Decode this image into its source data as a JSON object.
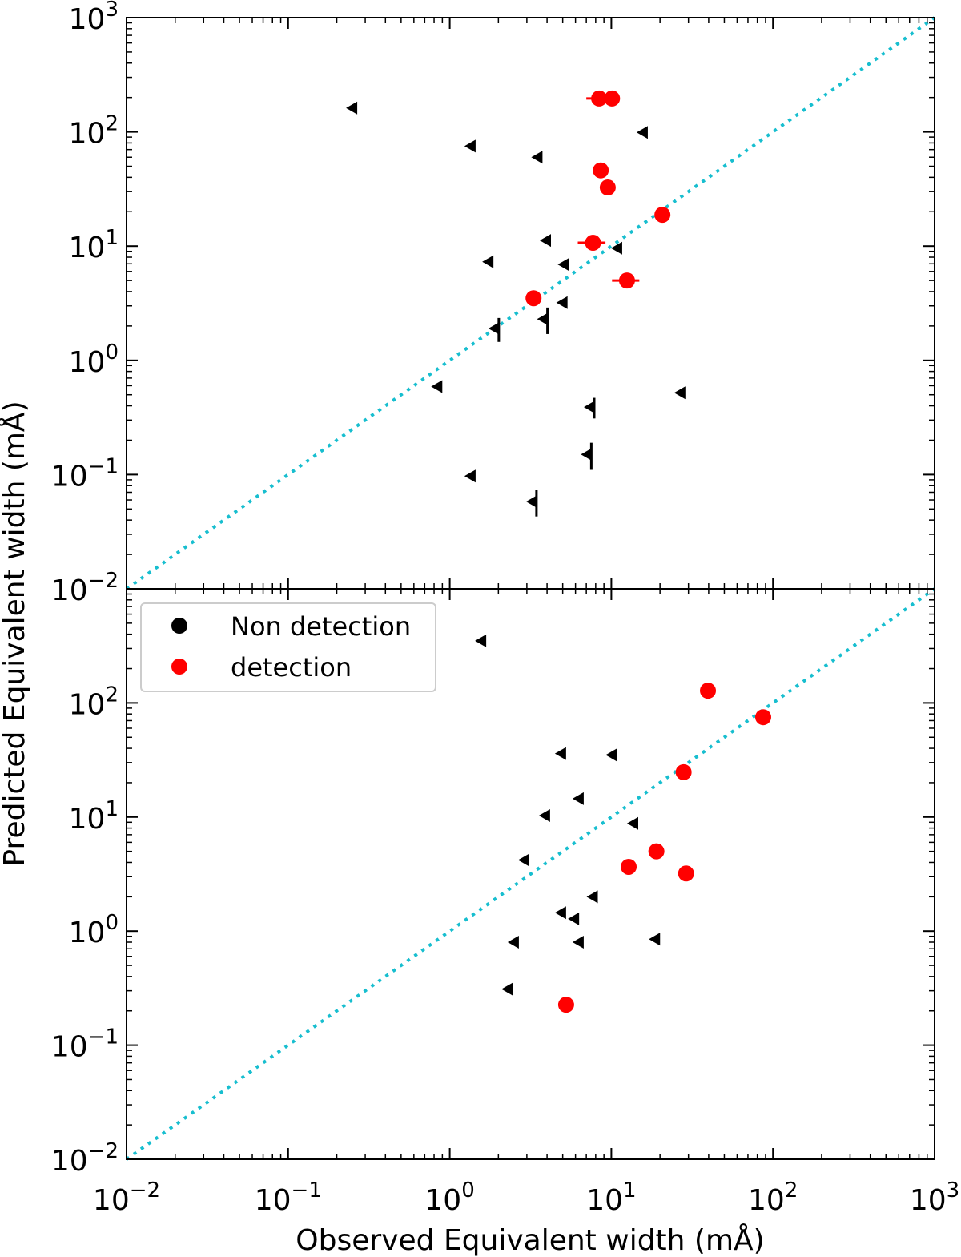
{
  "chart_data": [
    {
      "type": "scatter",
      "panel": "top",
      "xscale": "log",
      "yscale": "log",
      "xlim": [
        0.01,
        1000
      ],
      "ylim": [
        0.01,
        1000
      ],
      "reference_line": {
        "type": "y=x",
        "style": "dotted",
        "color": "#17becf"
      },
      "series": [
        {
          "name": "Non detection",
          "marker": "left-triangle",
          "color": "#000000",
          "points": [
            {
              "x": 0.25,
              "y": 162
            },
            {
              "x": 1.35,
              "y": 75
            },
            {
              "x": 3.5,
              "y": 60
            },
            {
              "x": 15.7,
              "y": 99
            },
            {
              "x": 3.95,
              "y": 11.2
            },
            {
              "x": 1.74,
              "y": 7.3
            },
            {
              "x": 5.1,
              "y": 6.9
            },
            {
              "x": 10.9,
              "y": 9.6
            },
            {
              "x": 5.0,
              "y": 3.2
            },
            {
              "x": 1.9,
              "y": 1.9,
              "yerr": 0.45
            },
            {
              "x": 3.8,
              "y": 2.3,
              "yerr": 0.6
            },
            {
              "x": 0.84,
              "y": 0.59
            },
            {
              "x": 26.8,
              "y": 0.52
            },
            {
              "x": 7.4,
              "y": 0.39,
              "yerr": 0.08
            },
            {
              "x": 7.1,
              "y": 0.15,
              "yerr": 0.04
            },
            {
              "x": 1.35,
              "y": 0.097
            },
            {
              "x": 3.25,
              "y": 0.058,
              "yerr": 0.015
            }
          ]
        },
        {
          "name": "detection",
          "marker": "circle",
          "color": "#ff0000",
          "points": [
            {
              "x": 8.4,
              "y": 196,
              "xerr": 1.4
            },
            {
              "x": 10.1,
              "y": 196
            },
            {
              "x": 8.6,
              "y": 46
            },
            {
              "x": 9.5,
              "y": 32.6
            },
            {
              "x": 20.7,
              "y": 18.8
            },
            {
              "x": 7.7,
              "y": 10.7,
              "xerr": 1.5
            },
            {
              "x": 12.5,
              "y": 5.0,
              "xerr": 2.4
            },
            {
              "x": 3.3,
              "y": 3.5
            }
          ]
        }
      ]
    },
    {
      "type": "scatter",
      "panel": "bottom",
      "xscale": "log",
      "yscale": "log",
      "xlim": [
        0.01,
        1000
      ],
      "ylim": [
        0.01,
        1000
      ],
      "reference_line": {
        "type": "y=x",
        "style": "dotted",
        "color": "#17becf"
      },
      "legend": {
        "placement": "upper-left",
        "entries": [
          "Non detection",
          "detection"
        ]
      },
      "series": [
        {
          "name": "Non detection",
          "marker": "left-triangle",
          "color": "#000000",
          "points": [
            {
              "x": 1.57,
              "y": 350
            },
            {
              "x": 4.9,
              "y": 36
            },
            {
              "x": 10.1,
              "y": 35
            },
            {
              "x": 6.3,
              "y": 14.5
            },
            {
              "x": 3.9,
              "y": 10.3
            },
            {
              "x": 13.7,
              "y": 8.8
            },
            {
              "x": 2.9,
              "y": 4.2
            },
            {
              "x": 7.7,
              "y": 2.0
            },
            {
              "x": 4.9,
              "y": 1.45
            },
            {
              "x": 5.9,
              "y": 1.28
            },
            {
              "x": 2.5,
              "y": 0.8
            },
            {
              "x": 6.3,
              "y": 0.8
            },
            {
              "x": 18.7,
              "y": 0.85
            },
            {
              "x": 2.29,
              "y": 0.31
            }
          ]
        },
        {
          "name": "detection",
          "marker": "circle",
          "color": "#ff0000",
          "points": [
            {
              "x": 39.6,
              "y": 128
            },
            {
              "x": 87,
              "y": 75
            },
            {
              "x": 28,
              "y": 24.7
            },
            {
              "x": 19,
              "y": 5.0
            },
            {
              "x": 12.8,
              "y": 3.66
            },
            {
              "x": 29,
              "y": 3.2
            },
            {
              "x": 5.25,
              "y": 0.226
            }
          ]
        }
      ]
    }
  ],
  "labels": {
    "xlabel": "Observed Equivalent width (mÅ)",
    "ylabel": "Predicted Equivalent width (mÅ)",
    "legend_non_detection": "Non detection",
    "legend_detection": "detection"
  },
  "ticks": {
    "exponents": [
      "−2",
      "−1",
      "0",
      "1",
      "2",
      "3"
    ],
    "base": "10"
  }
}
